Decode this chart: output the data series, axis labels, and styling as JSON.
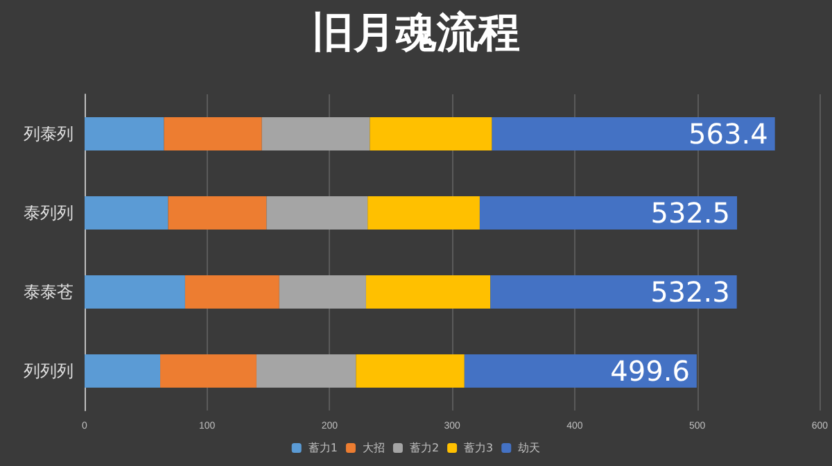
{
  "chart_data": {
    "type": "bar",
    "title": "旧月魂流程",
    "orientation": "horizontal",
    "stacked": true,
    "categories": [
      "列泰列",
      "泰列列",
      "泰泰苍",
      "列列列"
    ],
    "series": [
      {
        "name": "蓄力1",
        "color": "#5b9bd5",
        "values": [
          64.8,
          68.2,
          82.0,
          61.7
        ]
      },
      {
        "name": "大招",
        "color": "#ed7d31",
        "values": [
          79.9,
          80.3,
          76.9,
          78.6
        ]
      },
      {
        "name": "蓄力2",
        "color": "#a5a5a5",
        "values": [
          88.1,
          82.5,
          70.8,
          81.2
        ]
      },
      {
        "name": "蓄力3",
        "color": "#ffc000",
        "values": [
          99.7,
          91.5,
          101.5,
          88.5
        ]
      },
      {
        "name": "劫天",
        "color": "#4472c4",
        "values": [
          230.9,
          210.0,
          201.1,
          189.6
        ]
      }
    ],
    "totals": [
      "563.4",
      "532.5",
      "532.3",
      "499.6"
    ],
    "xlim": [
      0,
      600
    ],
    "xticks": [
      0,
      100,
      200,
      300,
      400,
      500,
      600
    ],
    "grid": "x",
    "legend": "bottom"
  }
}
